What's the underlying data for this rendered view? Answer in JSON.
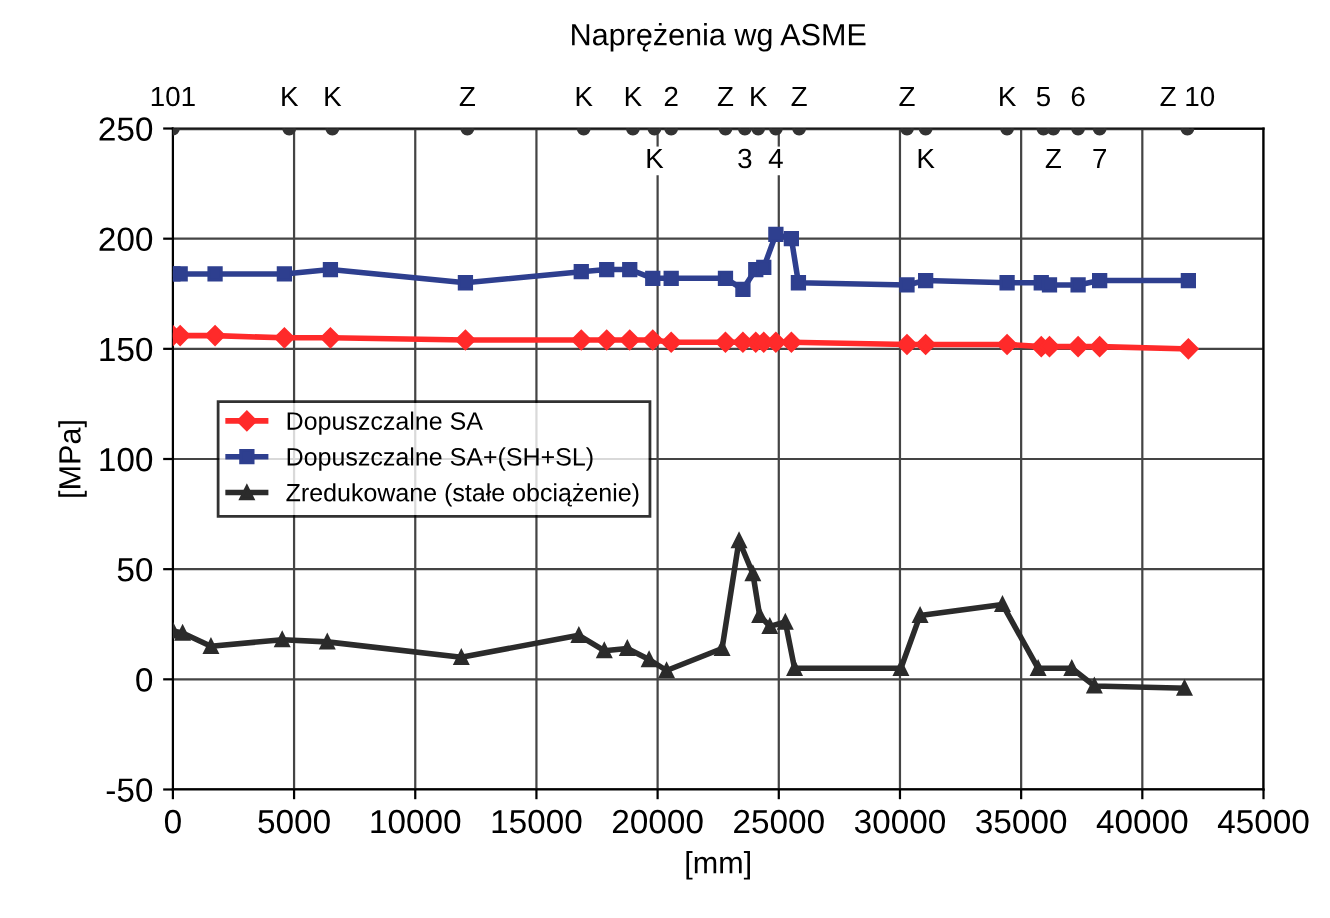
{
  "chart_data": {
    "type": "line",
    "title": "Naprężenia wg ASME",
    "xlabel": "[mm]",
    "ylabel": "[MPa]",
    "xlim": [
      0,
      45000
    ],
    "xticks": [
      0,
      5000,
      10000,
      15000,
      20000,
      25000,
      30000,
      35000,
      40000,
      45000
    ],
    "ylim": [
      -50,
      250
    ],
    "yticks": [
      -50,
      0,
      50,
      100,
      150,
      200,
      250
    ],
    "grid": true,
    "legend": "left",
    "series": [
      {
        "name": "Dopuszczalne SA",
        "color": "#ff2a2a",
        "marker": "diamond",
        "x": [
          0,
          300,
          1740,
          4600,
          6500,
          12070,
          16850,
          17900,
          18850,
          19800,
          20560,
          22800,
          23520,
          24050,
          24380,
          24880,
          25520,
          30290,
          31060,
          34420,
          35830,
          36170,
          37350,
          38240,
          41900
        ],
        "values": [
          156,
          156,
          156,
          155,
          155,
          154,
          154,
          154,
          154,
          154,
          153,
          153,
          153,
          153,
          153,
          153,
          153,
          152,
          152,
          152,
          151,
          151,
          151,
          151,
          150
        ]
      },
      {
        "name": "Dopuszczalne SA+(SH+SL)",
        "color": "#2e3f8f",
        "marker": "square",
        "x": [
          0,
          300,
          1740,
          4600,
          6500,
          12070,
          16850,
          17900,
          18850,
          19800,
          20560,
          22800,
          23520,
          24050,
          24380,
          24880,
          25520,
          25810,
          30290,
          31060,
          34420,
          35830,
          36170,
          37350,
          38240,
          41900
        ],
        "values": [
          184,
          184,
          184,
          184,
          186,
          180,
          185,
          186,
          186,
          182,
          182,
          182,
          177,
          186,
          187,
          202,
          200,
          180,
          179,
          181,
          180,
          180,
          179,
          179,
          181,
          181
        ]
      },
      {
        "name": "Zredukowane (stałe obciążenie)",
        "color": "#2b2b2b",
        "marker": "triangle",
        "x": [
          0,
          400,
          1570,
          4510,
          6370,
          11900,
          16750,
          17800,
          18750,
          19650,
          20370,
          22660,
          23360,
          23930,
          24210,
          24630,
          25270,
          25650,
          30040,
          30830,
          34230,
          35700,
          37090,
          38020,
          41740
        ],
        "values": [
          22,
          21,
          15,
          18,
          17,
          10,
          20,
          13,
          14,
          9,
          4,
          14,
          63,
          48,
          29,
          24,
          26,
          5,
          5,
          29,
          34,
          5,
          5,
          -3,
          -4
        ]
      },
      {
        "color": "#333333",
        "marker": "circle",
        "x": [
          0,
          4800,
          6580,
          12150,
          16950,
          18980,
          19870,
          20560,
          22800,
          23600,
          24150,
          24880,
          25840,
          30290,
          31060,
          34420,
          35920,
          36330,
          37350,
          38240,
          41860
        ],
        "values": [
          250,
          250,
          250,
          250,
          250,
          250,
          250,
          250,
          250,
          250,
          250,
          250,
          250,
          250,
          250,
          250,
          250,
          250,
          250,
          250,
          250
        ]
      }
    ],
    "annotations": [
      {
        "text": "101",
        "x": 0,
        "y": 250
      },
      {
        "text": "K",
        "x": 4800,
        "y": 250
      },
      {
        "text": "K",
        "x": 6580,
        "y": 250
      },
      {
        "text": "Z",
        "x": 12150,
        "y": 250
      },
      {
        "text": "K",
        "x": 16950,
        "y": 250
      },
      {
        "text": "K",
        "x": 18980,
        "y": 250
      },
      {
        "text": "K",
        "x": 19870,
        "y": 250
      },
      {
        "text": "2",
        "x": 20560,
        "y": 250
      },
      {
        "text": "Z",
        "x": 22800,
        "y": 250
      },
      {
        "text": "3",
        "x": 23600,
        "y": 250
      },
      {
        "text": "K",
        "x": 24150,
        "y": 250
      },
      {
        "text": "4",
        "x": 24880,
        "y": 250
      },
      {
        "text": "Z",
        "x": 25840,
        "y": 250
      },
      {
        "text": "Z",
        "x": 30290,
        "y": 250
      },
      {
        "text": "K",
        "x": 31060,
        "y": 250
      },
      {
        "text": "K",
        "x": 34420,
        "y": 250
      },
      {
        "text": "5",
        "x": 35920,
        "y": 250
      },
      {
        "text": "Z",
        "x": 36330,
        "y": 250
      },
      {
        "text": "6",
        "x": 37350,
        "y": 250
      },
      {
        "text": "7",
        "x": 38240,
        "y": 250
      },
      {
        "text": "Z 10",
        "x": 41860,
        "y": 250
      }
    ]
  }
}
